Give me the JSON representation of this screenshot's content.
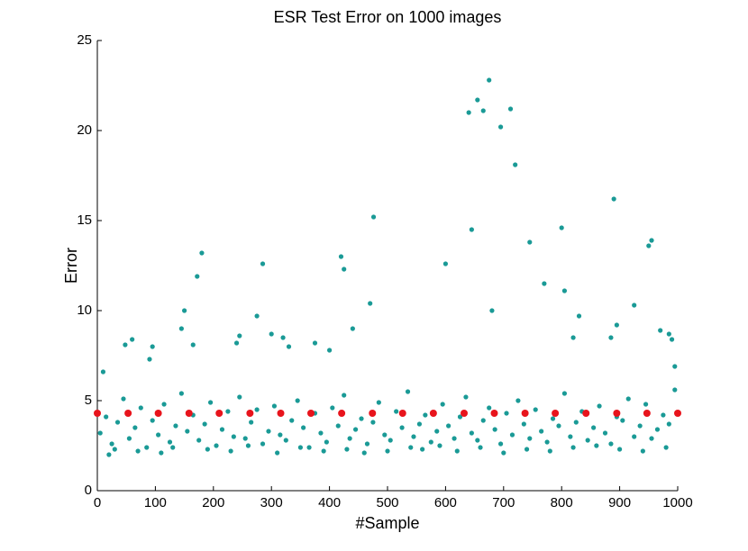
{
  "chart_data": {
    "type": "scatter",
    "title": "ESR Test Error on 1000 images",
    "xlabel": "#Sample",
    "ylabel": "Error",
    "xlim": [
      0,
      1000
    ],
    "ylim": [
      0,
      25
    ],
    "xticks": [
      0,
      100,
      200,
      300,
      400,
      500,
      600,
      700,
      800,
      900,
      1000
    ],
    "yticks": [
      0,
      5,
      10,
      15,
      20,
      25
    ],
    "series": [
      {
        "color": "#1a9a96",
        "x": [
          5,
          15,
          25,
          35,
          45,
          55,
          65,
          75,
          85,
          95,
          105,
          115,
          125,
          135,
          145,
          155,
          165,
          175,
          185,
          195,
          205,
          215,
          225,
          235,
          245,
          255,
          265,
          275,
          285,
          295,
          305,
          315,
          325,
          335,
          345,
          355,
          365,
          375,
          385,
          395,
          405,
          415,
          425,
          435,
          445,
          455,
          465,
          475,
          485,
          495,
          505,
          515,
          525,
          535,
          545,
          555,
          565,
          575,
          585,
          595,
          605,
          615,
          625,
          635,
          645,
          655,
          665,
          675,
          685,
          695,
          705,
          715,
          725,
          735,
          745,
          755,
          765,
          775,
          785,
          795,
          805,
          815,
          825,
          835,
          845,
          855,
          865,
          875,
          885,
          895,
          905,
          915,
          925,
          935,
          945,
          955,
          965,
          975,
          985,
          995,
          10,
          48,
          60,
          90,
          95,
          145,
          150,
          165,
          172,
          180,
          240,
          245,
          275,
          285,
          300,
          320,
          330,
          375,
          400,
          420,
          425,
          440,
          470,
          476,
          600,
          640,
          645,
          655,
          665,
          675,
          680,
          695,
          712,
          720,
          745,
          770,
          800,
          805,
          820,
          830,
          885,
          890,
          895,
          925,
          950,
          955,
          970,
          985,
          990,
          995,
          20,
          30,
          70,
          110,
          130,
          190,
          230,
          260,
          310,
          350,
          390,
          430,
          460,
          500,
          540,
          560,
          590,
          620,
          660,
          700,
          740,
          780,
          820,
          860,
          900,
          940,
          980
        ],
        "values": [
          3.2,
          4.1,
          2.6,
          3.8,
          5.1,
          2.9,
          3.5,
          4.6,
          2.4,
          3.9,
          3.1,
          4.8,
          2.7,
          3.6,
          5.4,
          3.3,
          4.2,
          2.8,
          3.7,
          4.9,
          2.5,
          3.4,
          4.4,
          3.0,
          5.2,
          2.9,
          3.8,
          4.5,
          2.6,
          3.3,
          4.7,
          3.1,
          2.8,
          3.9,
          5.0,
          3.5,
          2.4,
          4.3,
          3.2,
          2.7,
          4.6,
          3.6,
          5.3,
          2.9,
          3.4,
          4.0,
          2.6,
          3.8,
          4.9,
          3.1,
          2.8,
          4.4,
          3.5,
          5.5,
          3.0,
          3.7,
          4.2,
          2.7,
          3.3,
          4.8,
          3.6,
          2.9,
          4.1,
          5.2,
          3.2,
          2.8,
          3.9,
          4.6,
          3.4,
          2.6,
          4.3,
          3.1,
          5.0,
          3.7,
          2.9,
          4.5,
          3.3,
          2.7,
          4.0,
          3.6,
          5.4,
          3.0,
          3.8,
          4.4,
          2.8,
          3.5,
          4.7,
          3.2,
          2.6,
          4.1,
          3.9,
          5.1,
          3.0,
          3.6,
          4.8,
          2.9,
          3.4,
          4.2,
          3.7,
          5.6,
          6.6,
          8.1,
          8.4,
          7.3,
          8.0,
          9.0,
          10.0,
          8.1,
          11.9,
          13.2,
          8.2,
          8.6,
          9.7,
          12.6,
          8.7,
          8.5,
          8.0,
          8.2,
          7.8,
          13.0,
          12.3,
          9.0,
          10.4,
          15.2,
          12.6,
          21.0,
          14.5,
          21.7,
          21.1,
          22.8,
          10.0,
          20.2,
          21.2,
          18.1,
          13.8,
          11.5,
          14.6,
          11.1,
          8.5,
          9.7,
          8.5,
          16.2,
          9.2,
          10.3,
          13.6,
          13.9,
          8.9,
          8.7,
          8.4,
          6.9,
          2.0,
          2.3,
          2.2,
          2.1,
          2.4,
          2.3,
          2.2,
          2.5,
          2.1,
          2.4,
          2.2,
          2.3,
          2.1,
          2.2,
          2.4,
          2.3,
          2.5,
          2.2,
          2.4,
          2.1,
          2.3,
          2.2,
          2.4,
          2.5,
          2.3,
          2.2,
          2.4
        ]
      },
      {
        "color": "#e8141c",
        "x": [
          0,
          53,
          105,
          158,
          210,
          263,
          316,
          368,
          421,
          474,
          526,
          579,
          632,
          684,
          737,
          789,
          842,
          895,
          947,
          1000
        ],
        "values": [
          4.3,
          4.3,
          4.3,
          4.3,
          4.3,
          4.3,
          4.3,
          4.3,
          4.3,
          4.3,
          4.3,
          4.3,
          4.3,
          4.3,
          4.3,
          4.3,
          4.3,
          4.3,
          4.3,
          4.3
        ]
      }
    ]
  }
}
